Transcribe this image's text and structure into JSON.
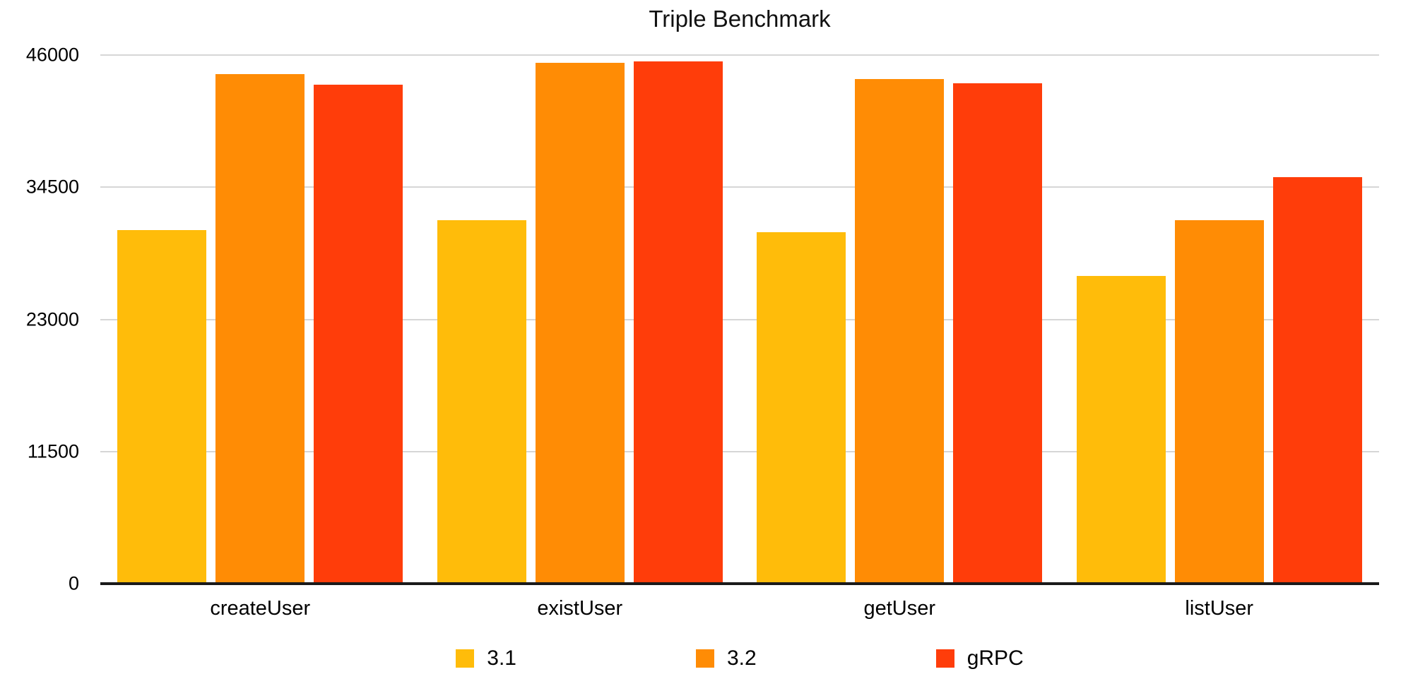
{
  "chart_data": {
    "type": "bar",
    "title": "Triple Benchmark",
    "categories": [
      "createUser",
      "existUser",
      "getUser",
      "listUser"
    ],
    "series": [
      {
        "name": "3.1",
        "color": "#FFBC0A",
        "values": [
          30800,
          31600,
          30600,
          26800
        ]
      },
      {
        "name": "3.2",
        "color": "#FF8C05",
        "values": [
          44350,
          45300,
          43900,
          31650
        ]
      },
      {
        "name": "gRPC",
        "color": "#FF3D0A",
        "values": [
          43400,
          45450,
          43550,
          35400
        ]
      }
    ],
    "xlabel": "",
    "ylabel": "",
    "ylim": [
      0,
      46000
    ],
    "yticks": [
      0,
      11500,
      23000,
      34500,
      46000
    ],
    "grid": true,
    "legend_position": "bottom",
    "colors": {
      "gridline": "#d6d6d6",
      "axis_line": "#1a1a1a",
      "text": "#000000",
      "background": "#ffffff"
    }
  }
}
